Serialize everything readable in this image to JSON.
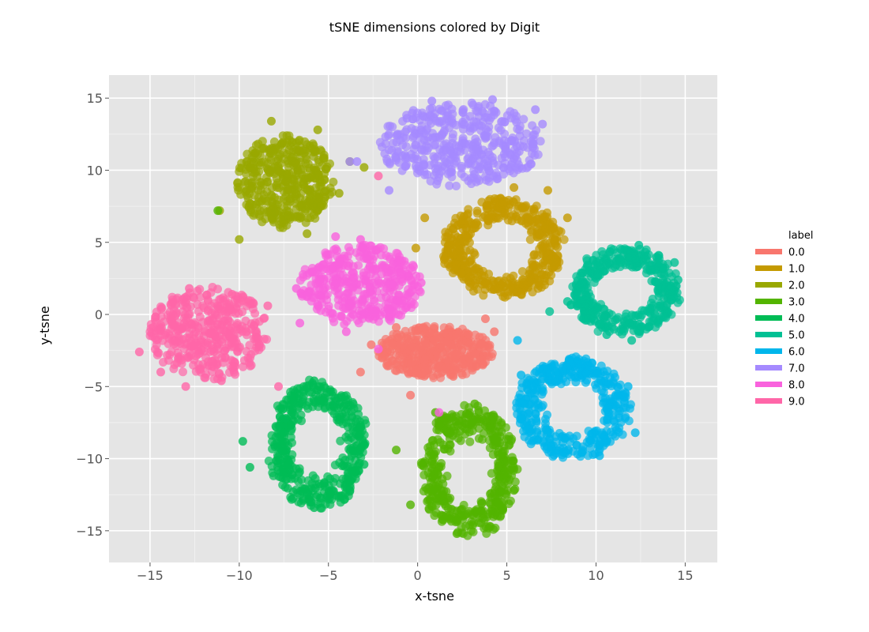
{
  "chart_data": {
    "type": "scatter",
    "title": "tSNE dimensions colored by Digit",
    "xlabel": "x-tsne",
    "ylabel": "y-tsne",
    "xlim": [
      -17.3,
      16.8
    ],
    "ylim": [
      -17.2,
      16.6
    ],
    "xticks": [
      -15,
      -10,
      -5,
      0,
      5,
      10,
      15
    ],
    "xtick_labels": [
      "−15",
      "−10",
      "−5",
      "0",
      "5",
      "10",
      "15"
    ],
    "yticks": [
      -15,
      -10,
      -5,
      0,
      5,
      10,
      15
    ],
    "ytick_labels": [
      "−15",
      "−10",
      "−5",
      "0",
      "5",
      "10",
      "15"
    ],
    "grid": true,
    "legend": {
      "title": "label",
      "position": "right"
    },
    "series": [
      {
        "name": "0.0",
        "color": "#f8766d",
        "center": [
          1.0,
          -2.6
        ],
        "spread": [
          3.2,
          1.8
        ],
        "count": 420,
        "shape": "blob",
        "points": [
          [
            -2.6,
            -2.1
          ],
          [
            -3.2,
            -4.0
          ],
          [
            -0.4,
            -5.6
          ],
          [
            4.3,
            -1.2
          ],
          [
            3.8,
            -0.3
          ],
          [
            2.0,
            -4.3
          ],
          [
            -1.2,
            -0.9
          ],
          [
            3.3,
            -3.6
          ]
        ]
      },
      {
        "name": "1.0",
        "color": "#c49a00",
        "center": [
          4.8,
          4.6
        ],
        "spread": [
          3.3,
          3.3
        ],
        "count": 460,
        "shape": "ring",
        "points": [
          [
            0.4,
            6.7
          ],
          [
            -0.1,
            4.6
          ],
          [
            1.5,
            3.8
          ],
          [
            3.8,
            2.2
          ],
          [
            5.8,
            1.4
          ],
          [
            8.4,
            6.7
          ],
          [
            7.3,
            8.6
          ],
          [
            5.4,
            8.8
          ],
          [
            2.6,
            6.8
          ],
          [
            7.8,
            3.6
          ]
        ]
      },
      {
        "name": "2.0",
        "color": "#99a800",
        "center": [
          -7.4,
          9.2
        ],
        "spread": [
          2.7,
          3.2
        ],
        "count": 420,
        "shape": "blob",
        "points": [
          [
            -11.1,
            7.2
          ],
          [
            -10.0,
            5.2
          ],
          [
            -8.2,
            13.4
          ],
          [
            -5.6,
            12.8
          ],
          [
            -4.4,
            8.4
          ],
          [
            -3.8,
            10.6
          ],
          [
            -6.2,
            5.6
          ],
          [
            -9.4,
            10.2
          ],
          [
            -7.2,
            11.4
          ],
          [
            -3.0,
            10.2
          ]
        ]
      },
      {
        "name": "3.0",
        "color": "#53b400",
        "center": [
          2.9,
          -10.9
        ],
        "spread": [
          2.6,
          4.4
        ],
        "count": 420,
        "shape": "ring",
        "points": [
          [
            -1.2,
            -9.4
          ],
          [
            -0.4,
            -13.2
          ],
          [
            2.2,
            -15.2
          ],
          [
            4.6,
            -13.2
          ],
          [
            5.4,
            -12.2
          ],
          [
            4.4,
            -8.6
          ],
          [
            1.0,
            -6.8
          ],
          [
            3.2,
            -6.2
          ],
          [
            -11.2,
            7.2
          ]
        ]
      },
      {
        "name": "4.0",
        "color": "#00bc56",
        "center": [
          -5.6,
          -9.0
        ],
        "spread": [
          2.7,
          4.3
        ],
        "count": 420,
        "shape": "ring",
        "points": [
          [
            -9.8,
            -8.8
          ],
          [
            -9.4,
            -10.6
          ],
          [
            -5.8,
            -13.4
          ],
          [
            -3.8,
            -12.2
          ],
          [
            -3.0,
            -10.4
          ],
          [
            -5.8,
            -4.6
          ],
          [
            -4.6,
            -6.0
          ],
          [
            -7.4,
            -7.2
          ]
        ]
      },
      {
        "name": "5.0",
        "color": "#00c094",
        "center": [
          11.6,
          1.6
        ],
        "spread": [
          3.0,
          3.0
        ],
        "count": 400,
        "shape": "ring",
        "points": [
          [
            7.4,
            0.2
          ],
          [
            8.4,
            0.9
          ],
          [
            12.4,
            4.8
          ],
          [
            14.6,
            2.4
          ],
          [
            14.4,
            3.6
          ],
          [
            10.6,
            -1.4
          ],
          [
            12.0,
            -1.8
          ],
          [
            11.4,
            3.6
          ]
        ]
      },
      {
        "name": "6.0",
        "color": "#00b6eb",
        "center": [
          8.7,
          -6.5
        ],
        "spread": [
          3.1,
          3.4
        ],
        "count": 400,
        "shape": "ring",
        "points": [
          [
            5.6,
            -1.8
          ],
          [
            5.8,
            -4.2
          ],
          [
            6.0,
            -6.2
          ],
          [
            10.2,
            -9.8
          ],
          [
            12.2,
            -8.2
          ],
          [
            11.8,
            -5.0
          ],
          [
            9.2,
            -3.4
          ],
          [
            7.2,
            -8.0
          ]
        ]
      },
      {
        "name": "7.0",
        "color": "#a58aff",
        "center": [
          2.4,
          11.8
        ],
        "spread": [
          4.5,
          2.9
        ],
        "count": 420,
        "shape": "blob",
        "points": [
          [
            -1.6,
            8.6
          ],
          [
            -3.4,
            10.6
          ],
          [
            -0.6,
            13.6
          ],
          [
            0.8,
            14.8
          ],
          [
            4.2,
            14.9
          ],
          [
            6.6,
            14.2
          ],
          [
            7.0,
            13.2
          ],
          [
            5.4,
            10.8
          ],
          [
            -3.8,
            10.6
          ]
        ]
      },
      {
        "name": "8.0",
        "color": "#f962dd",
        "center": [
          -3.2,
          2.0
        ],
        "spread": [
          3.4,
          2.8
        ],
        "count": 420,
        "shape": "blob",
        "points": [
          [
            -6.8,
            1.8
          ],
          [
            -6.6,
            -0.6
          ],
          [
            -4.6,
            5.4
          ],
          [
            -3.2,
            5.2
          ],
          [
            -0.6,
            2.8
          ],
          [
            0.2,
            2.2
          ],
          [
            -2.2,
            -2.4
          ],
          [
            -4.0,
            -1.2
          ],
          [
            1.2,
            -6.8
          ]
        ]
      },
      {
        "name": "9.0",
        "color": "#ff66a8",
        "center": [
          -11.7,
          -1.3
        ],
        "spread": [
          3.3,
          3.2
        ],
        "count": 420,
        "shape": "blob",
        "points": [
          [
            -15.6,
            -2.6
          ],
          [
            -14.4,
            -4.0
          ],
          [
            -13.0,
            -5.0
          ],
          [
            -12.8,
            1.8
          ],
          [
            -10.4,
            1.4
          ],
          [
            -8.4,
            0.6
          ],
          [
            -9.6,
            -1.2
          ],
          [
            -11.0,
            -4.6
          ],
          [
            -2.2,
            9.6
          ],
          [
            -7.8,
            -5.0
          ]
        ]
      }
    ]
  }
}
